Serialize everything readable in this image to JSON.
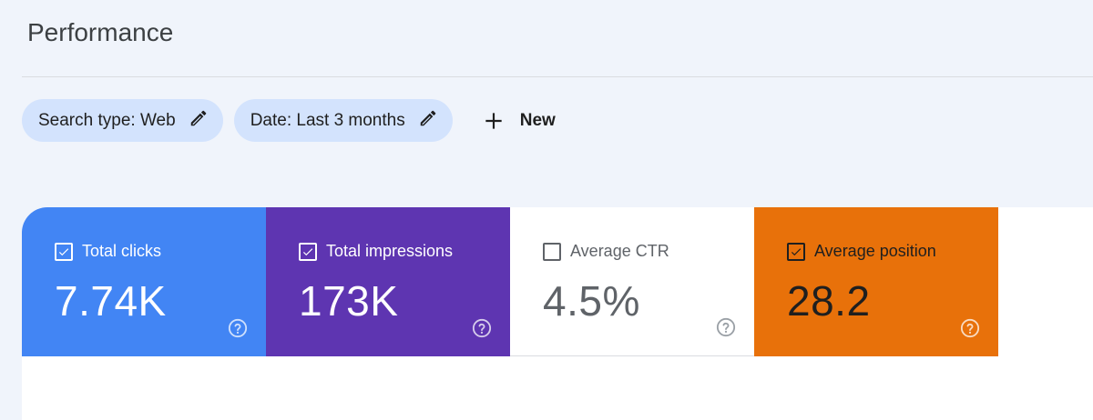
{
  "page": {
    "title": "Performance"
  },
  "filters": {
    "search_type": "Search type: Web",
    "date": "Date: Last 3 months",
    "new_label": "New"
  },
  "cards": [
    {
      "label": "Total clicks",
      "value": "7.74K",
      "checked": true,
      "color": "#4285f4"
    },
    {
      "label": "Total impressions",
      "value": "173K",
      "checked": true,
      "color": "#5e35b1"
    },
    {
      "label": "Average CTR",
      "value": "4.5%",
      "checked": false,
      "color": "#ffffff"
    },
    {
      "label": "Average position",
      "value": "28.2",
      "checked": true,
      "color": "#e8710a"
    }
  ]
}
